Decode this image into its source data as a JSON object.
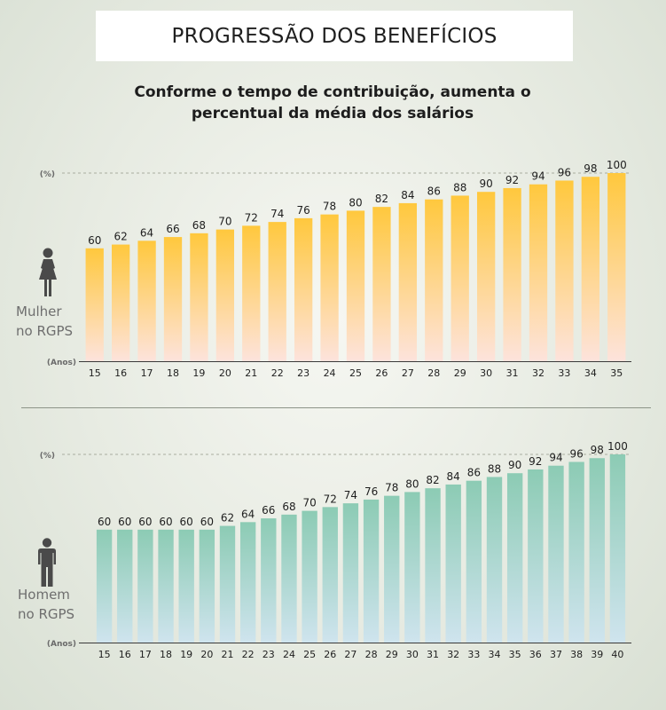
{
  "header": {
    "title": "PROGRESSÃO DOS BENEFÍCIOS",
    "subtitle_line1": "Conforme o tempo de contribuição, aumenta o",
    "subtitle_line2": "percentual da média dos salários"
  },
  "colors": {
    "women_bar_top": "#ffc83d",
    "women_bar_bottom": "#fde3dc",
    "men_bar_top": "#8ccbb4",
    "men_bar_bottom": "#cfe4ee",
    "icon": "#4a4a4a"
  },
  "chart_data": [
    {
      "type": "bar",
      "name": "women",
      "caption_line1": "Mulher",
      "caption_line2": "no RGPS",
      "icon": "woman-icon",
      "ylabel": "(%)",
      "xlabel": "(Anos)",
      "ylim": [
        0,
        100
      ],
      "grid": false,
      "categories": [
        "15",
        "16",
        "17",
        "18",
        "19",
        "20",
        "21",
        "22",
        "23",
        "24",
        "25",
        "26",
        "27",
        "28",
        "29",
        "30",
        "31",
        "32",
        "33",
        "34",
        "35"
      ],
      "values": [
        60,
        62,
        64,
        66,
        68,
        70,
        72,
        74,
        76,
        78,
        80,
        82,
        84,
        86,
        88,
        90,
        92,
        94,
        96,
        98,
        100
      ]
    },
    {
      "type": "bar",
      "name": "men",
      "caption_line1": "Homem",
      "caption_line2": "no RGPS",
      "icon": "man-icon",
      "ylabel": "(%)",
      "xlabel": "(Anos)",
      "ylim": [
        0,
        100
      ],
      "grid": false,
      "categories": [
        "15",
        "16",
        "17",
        "18",
        "19",
        "20",
        "21",
        "22",
        "23",
        "24",
        "25",
        "26",
        "27",
        "28",
        "29",
        "30",
        "31",
        "32",
        "33",
        "34",
        "35",
        "36",
        "37",
        "38",
        "39",
        "40"
      ],
      "values": [
        60,
        60,
        60,
        60,
        60,
        60,
        62,
        64,
        66,
        68,
        70,
        72,
        74,
        76,
        78,
        80,
        82,
        84,
        86,
        88,
        90,
        92,
        94,
        96,
        98,
        100
      ]
    }
  ]
}
